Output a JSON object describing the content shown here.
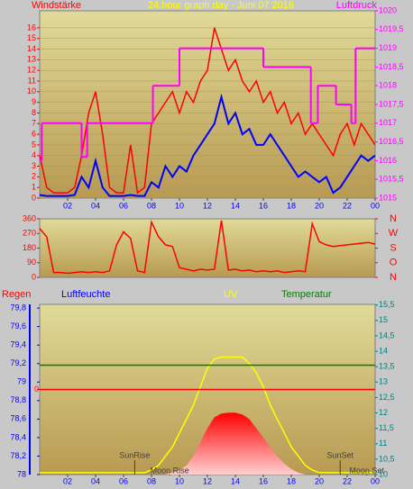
{
  "chart_data": [
    {
      "type": "line",
      "title": "24 hour graph day - Juni 07 2016",
      "ylabel": "Windstärke",
      "y2label": "Luftdruck",
      "x": [
        0,
        0.5,
        1,
        1.5,
        2,
        2.5,
        3,
        3.5,
        4,
        4.5,
        5,
        5.5,
        6,
        6.5,
        7,
        7.5,
        8,
        8.5,
        9,
        9.5,
        10,
        10.5,
        11,
        11.5,
        12,
        12.5,
        13,
        13.5,
        14,
        14.5,
        15,
        15.5,
        16,
        16.5,
        17,
        17.5,
        18,
        18.5,
        19,
        19.5,
        20,
        20.5,
        21,
        21.5,
        22,
        22.5,
        23,
        23.5,
        24
      ],
      "xlim": [
        0,
        24
      ],
      "xticks": [
        {
          "value": 2,
          "label": "02"
        },
        {
          "value": 4,
          "label": "04"
        },
        {
          "value": 6,
          "label": "06"
        },
        {
          "value": 8,
          "label": "08"
        },
        10,
        12,
        14,
        16,
        18,
        20,
        22,
        {
          "value": 24,
          "label": "00"
        }
      ],
      "ylim": [
        0,
        17.6
      ],
      "yticks": [
        0,
        1,
        2,
        3,
        4,
        5,
        6,
        7,
        8,
        9,
        10,
        11,
        12,
        13,
        14,
        15,
        16
      ],
      "ytick_color": "#ff0000",
      "y2lim": [
        1015,
        1020
      ],
      "y2ticks": [
        1015,
        {
          "value": 1015.5,
          "label": "1015,5"
        },
        1016,
        {
          "value": 1016.5,
          "label": "1016,5"
        },
        1017,
        {
          "value": 1017.5,
          "label": "1017,5"
        },
        1018,
        {
          "value": 1018.5,
          "label": "1018,5"
        },
        1019,
        {
          "value": 1019.5,
          "label": "1019,5"
        },
        1020
      ],
      "y2tick_color": "#ff00ff",
      "grid": true,
      "series": [
        {
          "color": "#ff0000",
          "style": "line",
          "values": [
            4,
            1,
            0.5,
            0.5,
            0.5,
            1,
            4,
            8,
            10,
            6,
            1,
            0.5,
            0.5,
            5,
            0.5,
            1,
            7,
            8,
            9,
            10,
            8,
            10,
            9,
            11,
            12,
            16,
            14,
            12,
            13,
            11,
            10,
            11,
            9,
            10,
            8,
            9,
            7,
            8,
            6,
            7,
            6,
            5,
            4,
            6,
            7,
            5,
            7,
            6,
            5
          ]
        },
        {
          "color": "#0000ff",
          "style": "line",
          "values": [
            0.3,
            0.2,
            0.2,
            0.2,
            0.2,
            0.3,
            2,
            1,
            3.5,
            1,
            0.2,
            0.2,
            0.2,
            0.3,
            0.2,
            0.2,
            1.5,
            1,
            3,
            2,
            3,
            2.5,
            4,
            5,
            6,
            7,
            9.5,
            7,
            8,
            6,
            6.5,
            5,
            5,
            6,
            5,
            4,
            3,
            2,
            2.5,
            2,
            1.5,
            2,
            0.5,
            1,
            2,
            3,
            4,
            3.5,
            4
          ]
        },
        {
          "color": "#ff00ff",
          "style": "step",
          "axis": "y2",
          "x": [
            0,
            0.15,
            3,
            3.4,
            8.1,
            10,
            16,
            19.4,
            19.9,
            21.2,
            22.3,
            22.6,
            24
          ],
          "values": [
            1016,
            1017,
            1016.1,
            1017,
            1018,
            1019,
            1018.5,
            1017,
            1018,
            1017.5,
            1017,
            1019,
            1019
          ]
        }
      ]
    },
    {
      "type": "line",
      "x": [
        0,
        0.5,
        1,
        1.5,
        2,
        2.5,
        3,
        3.5,
        4,
        4.5,
        5,
        5.5,
        6,
        6.5,
        7,
        7.5,
        8,
        8.5,
        9,
        9.5,
        10,
        10.5,
        11,
        11.5,
        12,
        12.5,
        13,
        13.5,
        14,
        14.5,
        15,
        15.5,
        16,
        16.5,
        17,
        17.5,
        18,
        18.5,
        19,
        19.5,
        20,
        20.5,
        21,
        21.5,
        22,
        22.5,
        23,
        23.5,
        24
      ],
      "xlim": [
        0,
        24
      ],
      "ylim": [
        0,
        360
      ],
      "yticks": [
        0,
        90,
        180,
        270,
        360
      ],
      "ytick_color": "#ff0000",
      "y2lim": [
        0,
        360
      ],
      "y2ticks": [
        {
          "value": 360,
          "label": "N"
        },
        {
          "value": 270,
          "label": "W"
        },
        {
          "value": 180,
          "label": "S"
        },
        {
          "value": 90,
          "label": "O"
        },
        {
          "value": 0,
          "label": "N"
        }
      ],
      "y2tick_color": "#ff0000",
      "series": [
        {
          "color": "#ff0000",
          "style": "line",
          "values": [
            300,
            250,
            30,
            30,
            25,
            30,
            35,
            30,
            35,
            30,
            40,
            200,
            280,
            240,
            40,
            30,
            340,
            250,
            200,
            190,
            60,
            50,
            40,
            50,
            45,
            50,
            350,
            45,
            50,
            40,
            45,
            35,
            40,
            35,
            40,
            30,
            35,
            40,
            35,
            330,
            220,
            200,
            190,
            195,
            200,
            205,
            210,
            215,
            205
          ]
        }
      ]
    },
    {
      "type": "line",
      "labels": [
        "Regen",
        "Luftfeuchte",
        "UV",
        "Temperatur"
      ],
      "x": [
        0,
        0.5,
        1,
        1.5,
        2,
        2.5,
        3,
        3.5,
        4,
        4.5,
        5,
        5.5,
        6,
        6.5,
        7,
        7.5,
        8,
        8.5,
        9,
        9.5,
        10,
        10.5,
        11,
        11.5,
        12,
        12.5,
        13,
        13.5,
        14,
        14.5,
        15,
        15.5,
        16,
        16.5,
        17,
        17.5,
        18,
        18.5,
        19,
        19.5,
        20,
        20.5,
        21,
        21.5,
        22,
        22.5,
        23,
        23.5,
        24
      ],
      "xlim": [
        0,
        24
      ],
      "xticks": [
        {
          "value": 2,
          "label": "02"
        },
        {
          "value": 4,
          "label": "04"
        },
        {
          "value": 6,
          "label": "06"
        },
        {
          "value": 8,
          "label": "08"
        },
        10,
        12,
        14,
        16,
        18,
        20,
        22,
        {
          "value": 24,
          "label": "00"
        }
      ],
      "ylim": [
        78,
        79.84
      ],
      "yticks": [
        78,
        {
          "value": 78.2,
          "label": "78,2"
        },
        {
          "value": 78.4,
          "label": "78,4"
        },
        {
          "value": 78.6,
          "label": "78,6"
        },
        {
          "value": 78.8,
          "label": "78,8"
        },
        79,
        {
          "value": 79.2,
          "label": "79,2"
        },
        {
          "value": 79.4,
          "label": "79,4"
        },
        {
          "value": 79.6,
          "label": "79,6"
        },
        {
          "value": 79.8,
          "label": "79,8"
        }
      ],
      "ytick_color": "#0000ff",
      "y2lim": [
        10,
        15.52
      ],
      "y2ticks": [
        10,
        {
          "value": 10.5,
          "label": "10,5"
        },
        11,
        {
          "value": 11.5,
          "label": "11,5"
        },
        12,
        {
          "value": 12.5,
          "label": "12,5"
        },
        13,
        {
          "value": 13.5,
          "label": "13,5"
        },
        14,
        {
          "value": 14.5,
          "label": "14,5"
        },
        15,
        {
          "value": 15.5,
          "label": "15,5"
        }
      ],
      "y2tick_color": "#008080",
      "y3lim": [
        -0.5,
        0.5
      ],
      "y3ticks": [
        0
      ],
      "y3tick_color": "#ff0000",
      "annotations": [
        {
          "text": "SunRise",
          "x": 6.8
        },
        {
          "text": "Moon Rise",
          "x": 9.3
        },
        {
          "text": "SunSet",
          "x": 21.5
        },
        {
          "text": "Moon Set",
          "x": 23.4
        }
      ],
      "series": [
        {
          "color": "#ff0000",
          "style": "area",
          "values": [
            78,
            78,
            78,
            78,
            78,
            78,
            78,
            78,
            78,
            78,
            78,
            78,
            78,
            78,
            78,
            78,
            78,
            78,
            78,
            78.02,
            78.05,
            78.1,
            78.2,
            78.35,
            78.5,
            78.62,
            78.66,
            78.67,
            78.67,
            78.65,
            78.6,
            78.5,
            78.4,
            78.3,
            78.2,
            78.12,
            78.06,
            78.02,
            78,
            78,
            78,
            78,
            78,
            78,
            78,
            78,
            78,
            78,
            78
          ]
        },
        {
          "color": "#ffff00",
          "style": "line",
          "values": [
            78.02,
            78.02,
            78.02,
            78.02,
            78.02,
            78.02,
            78.02,
            78.02,
            78.02,
            78.02,
            78.02,
            78.02,
            78.02,
            78.02,
            78.02,
            78.02,
            78.05,
            78.1,
            78.2,
            78.3,
            78.45,
            78.6,
            78.75,
            78.95,
            79.15,
            79.25,
            79.27,
            79.27,
            79.27,
            79.27,
            79.2,
            79.1,
            78.95,
            78.75,
            78.6,
            78.45,
            78.3,
            78.2,
            78.1,
            78.05,
            78.02,
            78.02,
            78.02,
            78.02,
            78.02,
            78.02,
            78.02,
            78.02,
            78.02
          ]
        },
        {
          "color": "#ff0000",
          "style": "line",
          "axis": "y3",
          "x": [
            0,
            24
          ],
          "values": [
            0,
            0
          ]
        },
        {
          "color": "#008000",
          "style": "line",
          "axis": "y2",
          "x": [
            0,
            24
          ],
          "values": [
            13.55,
            13.55
          ]
        }
      ]
    }
  ]
}
